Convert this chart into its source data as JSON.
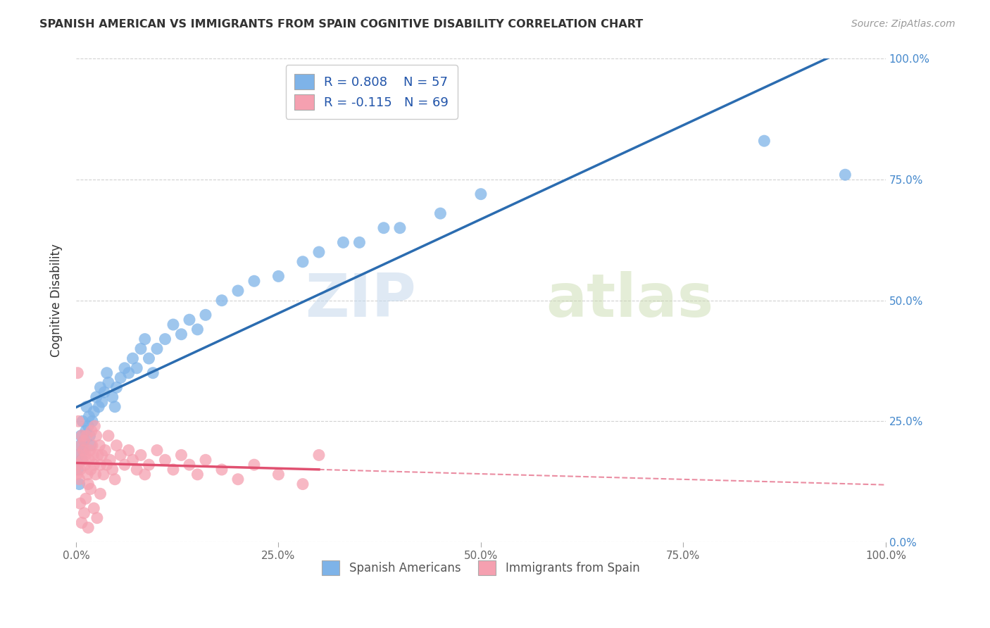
{
  "title": "SPANISH AMERICAN VS IMMIGRANTS FROM SPAIN COGNITIVE DISABILITY CORRELATION CHART",
  "source": "Source: ZipAtlas.com",
  "ylabel": "Cognitive Disability",
  "watermark_zip": "ZIP",
  "watermark_atlas": "atlas",
  "xlim": [
    0,
    1.0
  ],
  "ylim": [
    0,
    1.0
  ],
  "xticks": [
    0.0,
    0.25,
    0.5,
    0.75,
    1.0
  ],
  "yticks": [
    0.0,
    0.25,
    0.5,
    0.75,
    1.0
  ],
  "xtick_labels": [
    "0.0%",
    "25.0%",
    "50.0%",
    "75.0%",
    "100.0%"
  ],
  "ytick_labels": [
    "0.0%",
    "25.0%",
    "50.0%",
    "75.0%",
    "100.0%"
  ],
  "blue_R": 0.808,
  "blue_N": 57,
  "pink_R": -0.115,
  "pink_N": 69,
  "blue_color": "#7EB3E8",
  "pink_color": "#F5A0B0",
  "blue_line_color": "#2B6CB0",
  "pink_line_color": "#E05070",
  "legend_label_blue": "Spanish Americans",
  "legend_label_pink": "Immigrants from Spain",
  "blue_x": [
    0.002,
    0.003,
    0.004,
    0.005,
    0.006,
    0.007,
    0.008,
    0.009,
    0.01,
    0.012,
    0.013,
    0.015,
    0.016,
    0.017,
    0.018,
    0.02,
    0.022,
    0.025,
    0.028,
    0.03,
    0.032,
    0.035,
    0.038,
    0.04,
    0.045,
    0.048,
    0.05,
    0.055,
    0.06,
    0.065,
    0.07,
    0.075,
    0.08,
    0.085,
    0.09,
    0.095,
    0.1,
    0.11,
    0.12,
    0.13,
    0.14,
    0.15,
    0.16,
    0.18,
    0.2,
    0.22,
    0.25,
    0.28,
    0.3,
    0.33,
    0.35,
    0.38,
    0.4,
    0.45,
    0.5,
    0.85,
    0.95
  ],
  "blue_y": [
    0.15,
    0.18,
    0.12,
    0.2,
    0.22,
    0.17,
    0.25,
    0.19,
    0.21,
    0.23,
    0.28,
    0.24,
    0.26,
    0.22,
    0.2,
    0.25,
    0.27,
    0.3,
    0.28,
    0.32,
    0.29,
    0.31,
    0.35,
    0.33,
    0.3,
    0.28,
    0.32,
    0.34,
    0.36,
    0.35,
    0.38,
    0.36,
    0.4,
    0.42,
    0.38,
    0.35,
    0.4,
    0.42,
    0.45,
    0.43,
    0.46,
    0.44,
    0.47,
    0.5,
    0.52,
    0.54,
    0.55,
    0.58,
    0.6,
    0.62,
    0.62,
    0.65,
    0.65,
    0.68,
    0.72,
    0.83,
    0.76
  ],
  "pink_x": [
    0.001,
    0.002,
    0.003,
    0.004,
    0.005,
    0.006,
    0.007,
    0.008,
    0.009,
    0.01,
    0.011,
    0.012,
    0.013,
    0.014,
    0.015,
    0.016,
    0.017,
    0.018,
    0.019,
    0.02,
    0.021,
    0.022,
    0.023,
    0.024,
    0.025,
    0.027,
    0.029,
    0.03,
    0.032,
    0.034,
    0.036,
    0.038,
    0.04,
    0.042,
    0.045,
    0.048,
    0.05,
    0.055,
    0.06,
    0.065,
    0.07,
    0.075,
    0.08,
    0.085,
    0.09,
    0.1,
    0.11,
    0.12,
    0.13,
    0.14,
    0.15,
    0.16,
    0.18,
    0.2,
    0.22,
    0.25,
    0.28,
    0.3,
    0.002,
    0.003,
    0.005,
    0.007,
    0.01,
    0.012,
    0.015,
    0.018,
    0.022,
    0.026,
    0.03
  ],
  "pink_y": [
    0.14,
    0.16,
    0.18,
    0.13,
    0.15,
    0.2,
    0.22,
    0.17,
    0.19,
    0.21,
    0.16,
    0.18,
    0.22,
    0.14,
    0.12,
    0.17,
    0.19,
    0.15,
    0.23,
    0.2,
    0.18,
    0.16,
    0.24,
    0.14,
    0.22,
    0.18,
    0.2,
    0.16,
    0.18,
    0.14,
    0.19,
    0.16,
    0.22,
    0.17,
    0.15,
    0.13,
    0.2,
    0.18,
    0.16,
    0.19,
    0.17,
    0.15,
    0.18,
    0.14,
    0.16,
    0.19,
    0.17,
    0.15,
    0.18,
    0.16,
    0.14,
    0.17,
    0.15,
    0.13,
    0.16,
    0.14,
    0.12,
    0.18,
    0.35,
    0.25,
    0.08,
    0.04,
    0.06,
    0.09,
    0.03,
    0.11,
    0.07,
    0.05,
    0.1
  ]
}
